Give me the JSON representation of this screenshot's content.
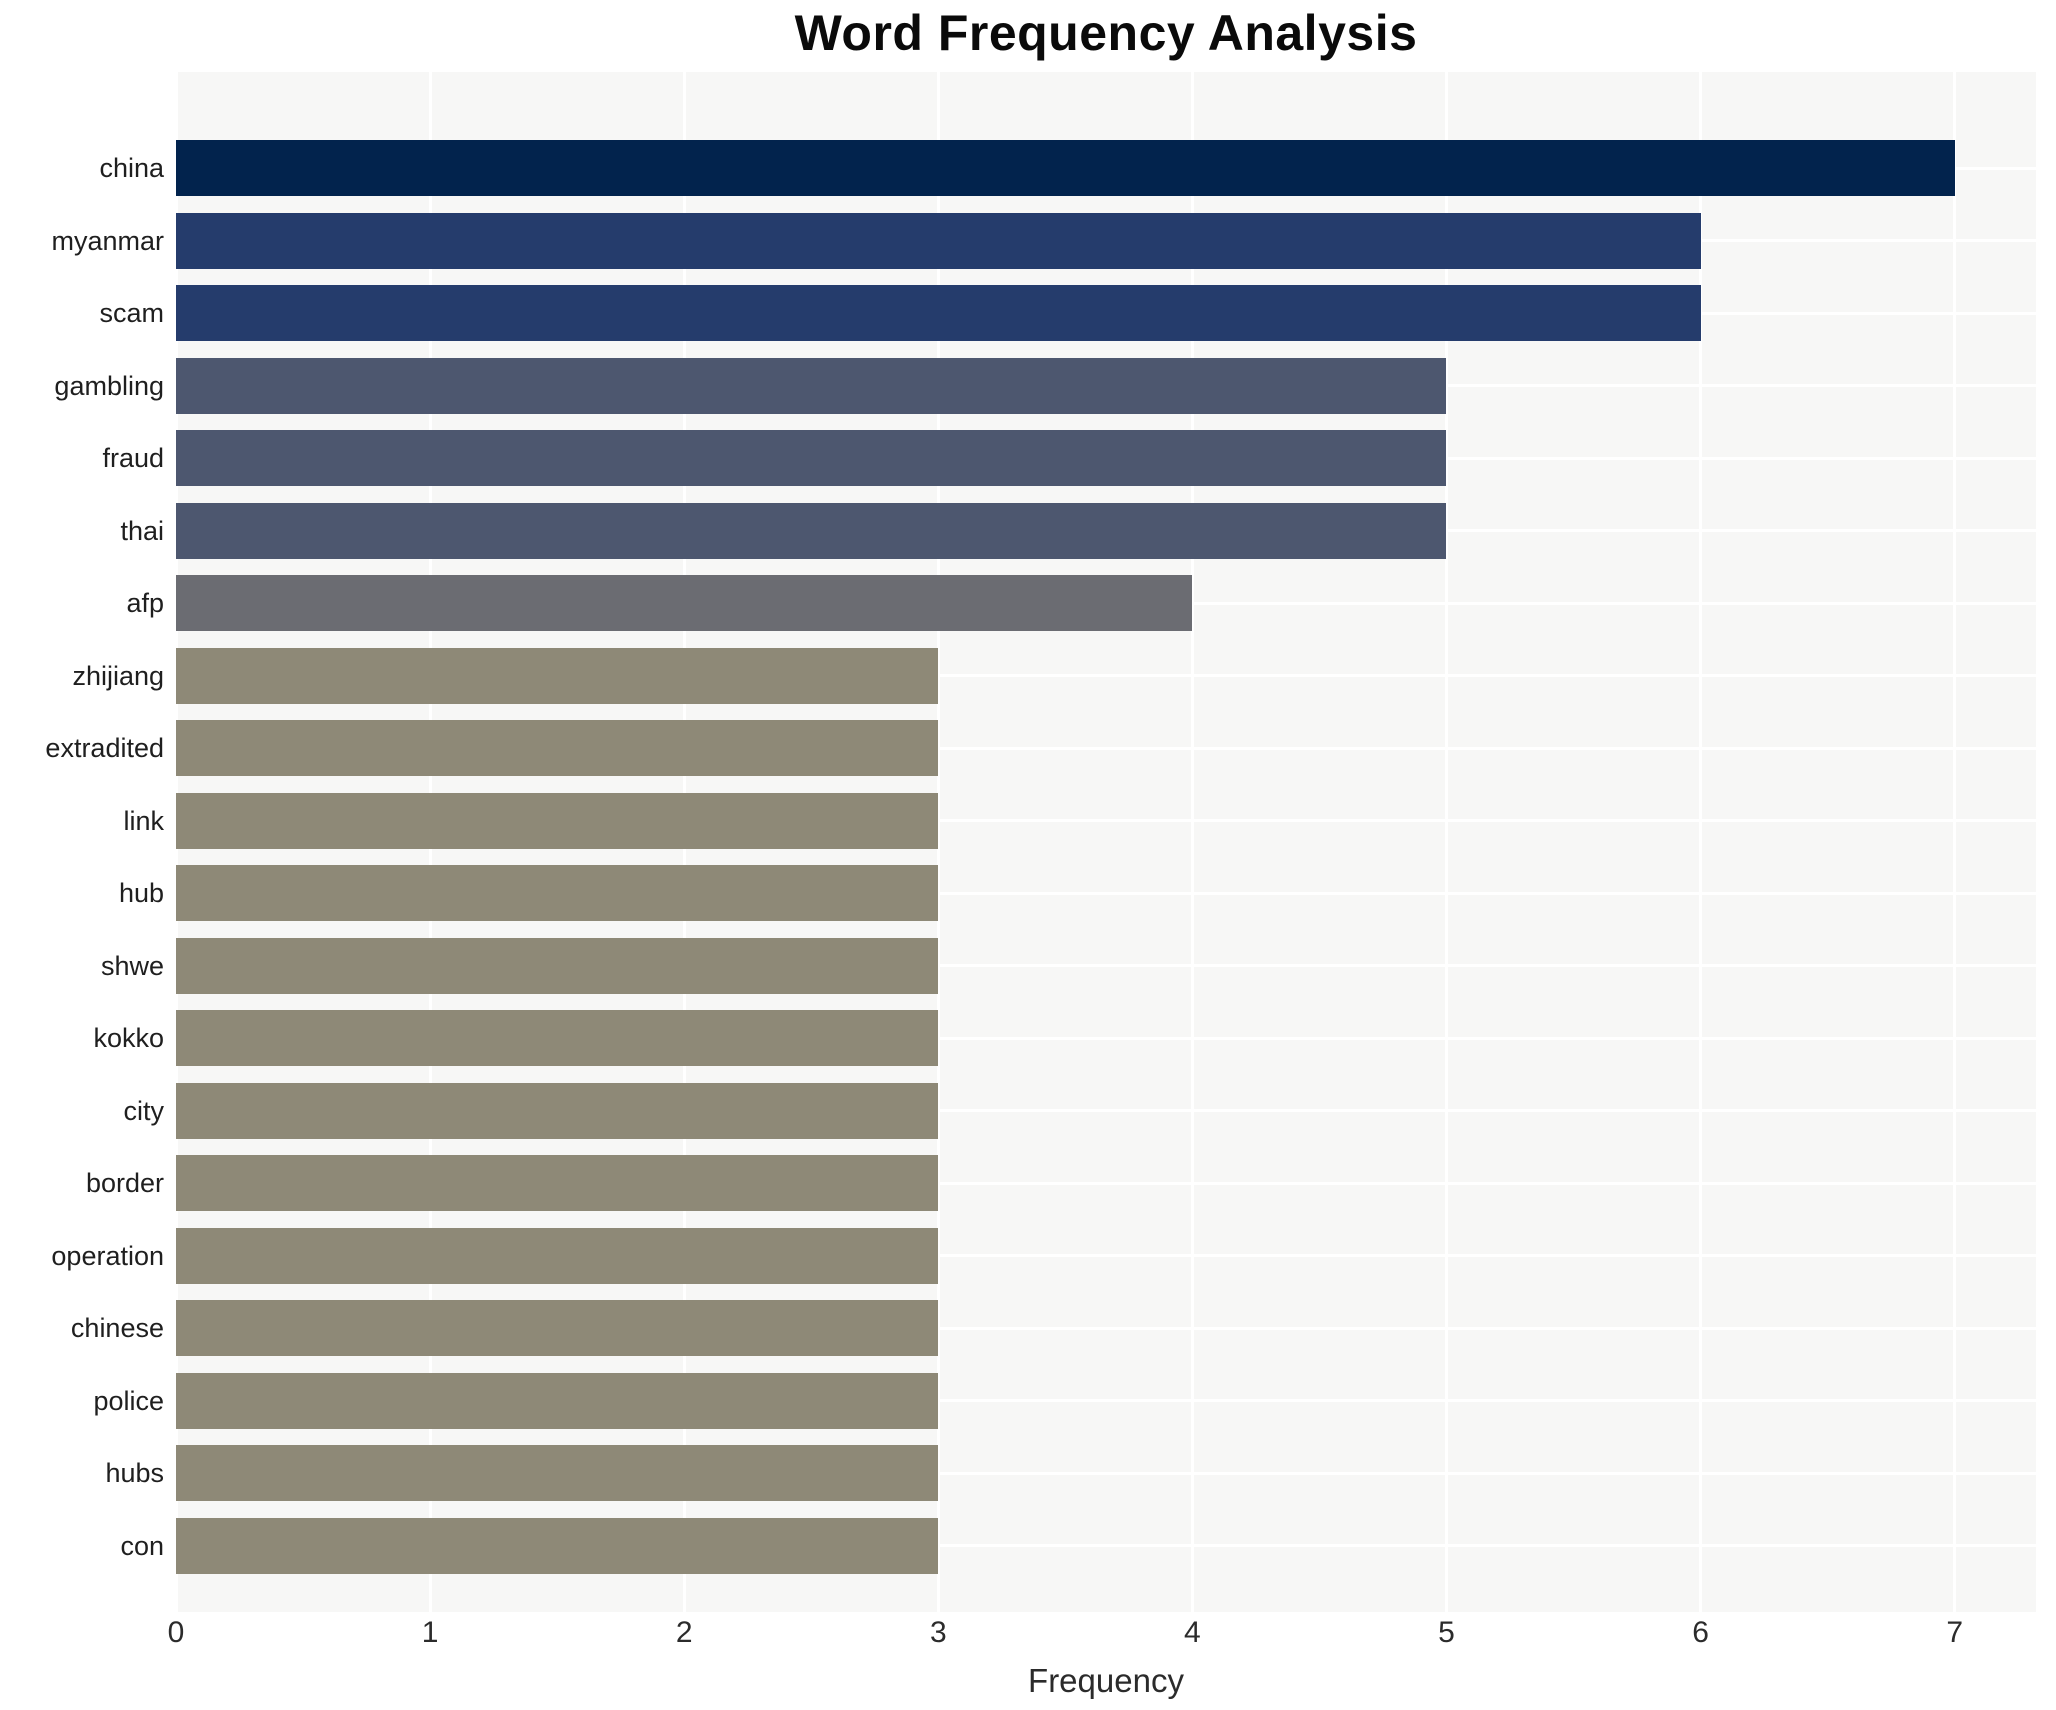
{
  "chart_data": {
    "type": "bar",
    "orientation": "horizontal",
    "title": "Word Frequency Analysis",
    "xlabel": "Frequency",
    "ylabel": "",
    "categories": [
      "china",
      "myanmar",
      "scam",
      "gambling",
      "fraud",
      "thai",
      "afp",
      "zhijiang",
      "extradited",
      "link",
      "hub",
      "shwe",
      "kokko",
      "city",
      "border",
      "operation",
      "chinese",
      "police",
      "hubs",
      "con"
    ],
    "values": [
      7,
      6,
      6,
      5,
      5,
      5,
      4,
      3,
      3,
      3,
      3,
      3,
      3,
      3,
      3,
      3,
      3,
      3,
      3,
      3
    ],
    "xticks": [
      0,
      1,
      2,
      3,
      4,
      5,
      6,
      7
    ],
    "xlim": [
      0,
      7.32
    ],
    "grid": true,
    "legend": false,
    "plot_background": "#f7f7f6",
    "gridline_color": "#ffffff",
    "colors_by_value": {
      "7": "#02234d",
      "6": "#253c6c",
      "5": "#4d576f",
      "4": "#6b6c72",
      "3": "#8e8977"
    }
  }
}
